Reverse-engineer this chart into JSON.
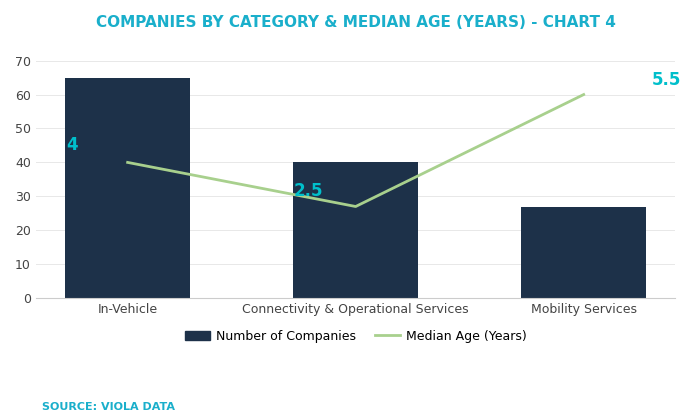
{
  "title": "COMPANIES BY CATEGORY & MEDIAN AGE (YEARS) - CHART 4",
  "title_color": "#1AAFCB",
  "title_fontsize": 11,
  "categories": [
    "In-Vehicle",
    "Connectivity & Operational Services",
    "Mobility Services"
  ],
  "bar_values": [
    65,
    40,
    27
  ],
  "bar_color": "#1D3149",
  "line_scaled_values": [
    40,
    27,
    60
  ],
  "line_color": "#A8D08D",
  "line_label_color": "#00BFCB",
  "line_labels": [
    "4",
    "2.5",
    "5.5"
  ],
  "ylim": [
    0,
    75
  ],
  "yticks": [
    0,
    10,
    20,
    30,
    40,
    50,
    60,
    70
  ],
  "legend_bar_label": "Number of Companies",
  "legend_line_label": "Median Age (Years)",
  "source_text": "SOURCE: VIOLA DATA",
  "source_color": "#1AAFCB",
  "source_fontsize": 8,
  "background_color": "#ffffff",
  "bar_width": 0.55
}
